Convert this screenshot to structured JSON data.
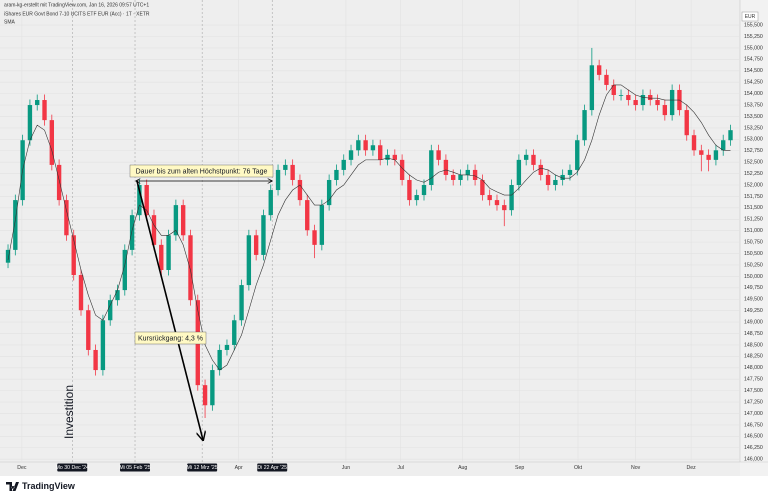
{
  "chart_data": {
    "type": "candlestick",
    "watermark": "aram-kg-erstellt mit TradingView.com, Jan 16, 2026 09:57 UTC+1",
    "symbol": "iShares EUR Govt Bond 7-10 UCITS ETF EUR (Acc) · 1T · XETR",
    "indicator": "SMA",
    "currency": "EUR",
    "logo": "TradingView",
    "up_color": "#089981",
    "down_color": "#f23645",
    "sma_color": "#333333",
    "grid": true,
    "xlim": [
      -1.1,
      100.3
    ],
    "ylim": [
      145.96,
      155.83
    ],
    "yticks": [
      {
        "value": 146.0,
        "label": "146,000"
      },
      {
        "value": 146.25,
        "label": "146,250"
      },
      {
        "value": 146.5,
        "label": "146,500"
      },
      {
        "value": 146.75,
        "label": "146,750"
      },
      {
        "value": 147.0,
        "label": "147,000"
      },
      {
        "value": 147.25,
        "label": "147,250"
      },
      {
        "value": 147.5,
        "label": "147,500"
      },
      {
        "value": 147.75,
        "label": "147,750"
      },
      {
        "value": 148.0,
        "label": "148,000"
      },
      {
        "value": 148.25,
        "label": "148,250"
      },
      {
        "value": 148.5,
        "label": "148,500"
      },
      {
        "value": 148.75,
        "label": "148,750"
      },
      {
        "value": 149.0,
        "label": "149,000"
      },
      {
        "value": 149.25,
        "label": "149,250"
      },
      {
        "value": 149.5,
        "label": "149,500"
      },
      {
        "value": 149.75,
        "label": "149,750"
      },
      {
        "value": 150.0,
        "label": "150,000"
      },
      {
        "value": 150.25,
        "label": "150,250"
      },
      {
        "value": 150.5,
        "label": "150,500"
      },
      {
        "value": 150.75,
        "label": "150,750"
      },
      {
        "value": 151.0,
        "label": "151,000"
      },
      {
        "value": 151.25,
        "label": "151,250"
      },
      {
        "value": 151.5,
        "label": "151,500"
      },
      {
        "value": 151.75,
        "label": "151,750"
      },
      {
        "value": 152.0,
        "label": "152,000"
      },
      {
        "value": 152.25,
        "label": "152,250"
      },
      {
        "value": 152.5,
        "label": "152,500"
      },
      {
        "value": 152.75,
        "label": "152,750"
      },
      {
        "value": 153.0,
        "label": "153,000"
      },
      {
        "value": 153.25,
        "label": "153,250"
      },
      {
        "value": 153.5,
        "label": "153,500"
      },
      {
        "value": 153.75,
        "label": "153,750"
      },
      {
        "value": 154.0,
        "label": "154,000"
      },
      {
        "value": 154.25,
        "label": "154,250"
      },
      {
        "value": 154.5,
        "label": "154,500"
      },
      {
        "value": 154.75,
        "label": "154,750"
      },
      {
        "value": 155.0,
        "label": "155,000"
      },
      {
        "value": 155.25,
        "label": "155,250"
      },
      {
        "value": 155.5,
        "label": "155,500"
      }
    ],
    "xticks": [
      {
        "value": 1.9,
        "label": "Dec"
      },
      {
        "value": 31.6,
        "label": "Apr"
      },
      {
        "value": 46.3,
        "label": "Jun"
      },
      {
        "value": 53.8,
        "label": "Jul"
      },
      {
        "value": 62.3,
        "label": "Aug"
      },
      {
        "value": 70.1,
        "label": "Sep"
      },
      {
        "value": 78.1,
        "label": "Okt"
      },
      {
        "value": 86.0,
        "label": "Nov"
      },
      {
        "value": 93.6,
        "label": "Dez"
      }
    ],
    "markers": [
      {
        "value": 8.8,
        "label": "Mo 30 Dec '24"
      },
      {
        "value": 17.4,
        "label": "Mi 05 Feb '25"
      },
      {
        "value": 26.6,
        "label": "Mi 12 Mrz '25"
      },
      {
        "value": 36.2,
        "label": "Di 22 Apr '25"
      }
    ],
    "annotations": [
      "Dauer bis zum alten Höchstpunkt: 76 Tage",
      "Kursrückgang: 4,3 %",
      "Investition"
    ],
    "candles": [
      [
        150.3,
        150.7,
        150.18,
        150.58
      ],
      [
        150.58,
        151.79,
        150.46,
        151.67
      ],
      [
        151.67,
        153.1,
        151.55,
        152.98
      ],
      [
        152.98,
        153.87,
        152.86,
        153.75
      ],
      [
        153.75,
        153.98,
        153.63,
        153.86
      ],
      [
        153.86,
        153.98,
        153.3,
        153.42
      ],
      [
        153.42,
        153.54,
        152.32,
        152.44
      ],
      [
        152.44,
        152.56,
        151.55,
        151.67
      ],
      [
        151.67,
        151.79,
        150.78,
        150.9
      ],
      [
        150.9,
        151.02,
        149.91,
        150.03
      ],
      [
        150.03,
        150.15,
        149.14,
        149.26
      ],
      [
        149.26,
        149.38,
        148.27,
        148.39
      ],
      [
        148.39,
        148.51,
        147.83,
        147.95
      ],
      [
        147.95,
        149.16,
        147.83,
        149.04
      ],
      [
        149.04,
        149.6,
        148.92,
        149.48
      ],
      [
        149.48,
        149.82,
        149.36,
        149.7
      ],
      [
        149.7,
        150.7,
        149.58,
        150.58
      ],
      [
        150.58,
        151.46,
        150.46,
        151.34
      ],
      [
        151.34,
        152.12,
        151.22,
        152.0
      ],
      [
        152.0,
        152.12,
        151.22,
        151.34
      ],
      [
        151.34,
        151.46,
        150.57,
        150.69
      ],
      [
        150.69,
        150.81,
        150.02,
        150.14
      ],
      [
        150.14,
        151.02,
        150.02,
        150.9
      ],
      [
        150.9,
        151.68,
        150.78,
        151.56
      ],
      [
        151.56,
        151.68,
        150.78,
        150.9
      ],
      [
        150.9,
        151.02,
        149.36,
        149.48
      ],
      [
        149.48,
        149.6,
        147.5,
        147.62
      ],
      [
        147.62,
        147.74,
        146.9,
        147.18
      ],
      [
        147.18,
        148.07,
        147.06,
        147.95
      ],
      [
        147.95,
        148.51,
        147.83,
        148.39
      ],
      [
        148.39,
        148.62,
        148.27,
        148.5
      ],
      [
        148.5,
        149.16,
        148.38,
        149.04
      ],
      [
        149.04,
        149.93,
        148.92,
        149.81
      ],
      [
        149.81,
        151.02,
        149.69,
        150.9
      ],
      [
        150.9,
        151.02,
        150.35,
        150.47
      ],
      [
        150.47,
        151.46,
        150.35,
        151.34
      ],
      [
        151.34,
        152.01,
        151.22,
        151.89
      ],
      [
        151.89,
        152.45,
        151.77,
        152.33
      ],
      [
        152.33,
        152.56,
        152.21,
        152.44
      ],
      [
        152.44,
        152.56,
        151.99,
        152.11
      ],
      [
        152.11,
        152.23,
        151.55,
        151.67
      ],
      [
        151.67,
        151.79,
        150.89,
        151.01
      ],
      [
        151.01,
        151.13,
        150.4,
        150.69
      ],
      [
        150.69,
        151.68,
        150.57,
        151.56
      ],
      [
        151.56,
        152.23,
        151.44,
        152.11
      ],
      [
        152.11,
        152.45,
        151.99,
        152.33
      ],
      [
        152.33,
        152.67,
        152.21,
        152.55
      ],
      [
        152.55,
        152.88,
        152.43,
        152.76
      ],
      [
        152.76,
        153.1,
        152.64,
        152.98
      ],
      [
        152.98,
        153.1,
        152.64,
        152.76
      ],
      [
        152.76,
        152.99,
        152.64,
        152.87
      ],
      [
        152.87,
        152.99,
        152.43,
        152.55
      ],
      [
        152.55,
        152.78,
        152.43,
        152.66
      ],
      [
        152.66,
        152.78,
        152.43,
        152.55
      ],
      [
        152.55,
        152.67,
        151.99,
        152.11
      ],
      [
        152.11,
        152.23,
        151.55,
        151.67
      ],
      [
        151.67,
        151.9,
        151.55,
        151.78
      ],
      [
        151.78,
        152.12,
        151.66,
        152.0
      ],
      [
        152.0,
        152.88,
        151.88,
        152.76
      ],
      [
        152.76,
        152.88,
        152.43,
        152.55
      ],
      [
        152.55,
        152.67,
        152.1,
        152.22
      ],
      [
        152.22,
        152.34,
        151.99,
        152.11
      ],
      [
        152.11,
        152.34,
        151.99,
        152.22
      ],
      [
        152.22,
        152.45,
        152.1,
        152.33
      ],
      [
        152.33,
        152.45,
        151.99,
        152.11
      ],
      [
        152.11,
        152.23,
        151.66,
        151.78
      ],
      [
        151.78,
        151.9,
        151.55,
        151.67
      ],
      [
        151.67,
        151.79,
        151.44,
        151.56
      ],
      [
        151.56,
        151.68,
        151.1,
        151.45
      ],
      [
        151.45,
        152.12,
        151.33,
        152.0
      ],
      [
        152.0,
        152.67,
        151.88,
        152.55
      ],
      [
        152.55,
        152.78,
        152.43,
        152.66
      ],
      [
        152.66,
        152.78,
        152.32,
        152.44
      ],
      [
        152.44,
        152.56,
        152.1,
        152.22
      ],
      [
        152.22,
        152.34,
        151.88,
        152.0
      ],
      [
        152.0,
        152.23,
        151.88,
        152.11
      ],
      [
        152.11,
        152.34,
        151.99,
        152.22
      ],
      [
        152.22,
        152.45,
        152.1,
        152.33
      ],
      [
        152.33,
        153.1,
        152.21,
        152.98
      ],
      [
        152.98,
        153.76,
        152.86,
        153.64
      ],
      [
        153.64,
        155.0,
        153.52,
        154.62
      ],
      [
        154.62,
        154.74,
        154.29,
        154.41
      ],
      [
        154.41,
        154.53,
        154.07,
        154.19
      ],
      [
        154.19,
        154.31,
        153.85,
        153.97
      ],
      [
        153.97,
        154.09,
        153.85,
        153.97
      ],
      [
        153.97,
        154.09,
        153.74,
        153.86
      ],
      [
        153.86,
        153.98,
        153.63,
        153.75
      ],
      [
        153.75,
        154.09,
        153.63,
        153.97
      ],
      [
        153.97,
        154.09,
        153.74,
        153.86
      ],
      [
        153.86,
        153.98,
        153.63,
        153.75
      ],
      [
        153.75,
        153.87,
        153.41,
        153.53
      ],
      [
        153.53,
        154.2,
        153.41,
        154.08
      ],
      [
        154.08,
        154.2,
        153.52,
        153.64
      ],
      [
        153.64,
        153.76,
        152.97,
        153.09
      ],
      [
        153.09,
        153.21,
        152.64,
        152.76
      ],
      [
        152.76,
        152.88,
        152.3,
        152.66
      ],
      [
        152.66,
        152.78,
        152.3,
        152.55
      ],
      [
        152.55,
        152.88,
        152.43,
        152.76
      ],
      [
        152.76,
        153.1,
        152.64,
        152.98
      ],
      [
        152.98,
        153.32,
        152.86,
        153.2
      ]
    ],
    "sma": [
      150.36,
      151.23,
      152.33,
      152.98,
      153.31,
      153.2,
      152.76,
      152.11,
      151.45,
      150.8,
      150.14,
      149.59,
      149.15,
      149.04,
      149.37,
      149.7,
      150.25,
      151.01,
      151.56,
      151.45,
      151.12,
      150.9,
      150.9,
      151.01,
      150.69,
      150.14,
      149.26,
      148.5,
      148.17,
      147.95,
      148.06,
      148.39,
      148.72,
      149.26,
      149.81,
      150.25,
      150.8,
      151.34,
      151.67,
      151.89,
      152.0,
      151.78,
      151.56,
      151.56,
      151.67,
      151.89,
      152.0,
      152.22,
      152.44,
      152.55,
      152.55,
      152.55,
      152.59,
      152.55,
      152.37,
      152.22,
      152.11,
      152.06,
      152.15,
      152.28,
      152.33,
      152.28,
      152.22,
      152.22,
      152.2,
      152.11,
      151.93,
      151.85,
      151.78,
      151.78,
      151.93,
      152.11,
      152.28,
      152.37,
      152.33,
      152.22,
      152.15,
      152.15,
      152.28,
      152.55,
      152.98,
      153.53,
      153.97,
      154.19,
      154.19,
      154.08,
      153.97,
      153.92,
      153.9,
      153.9,
      153.86,
      153.86,
      153.86,
      153.75,
      153.59,
      153.37,
      153.09,
      152.87,
      152.76,
      152.76
    ]
  }
}
